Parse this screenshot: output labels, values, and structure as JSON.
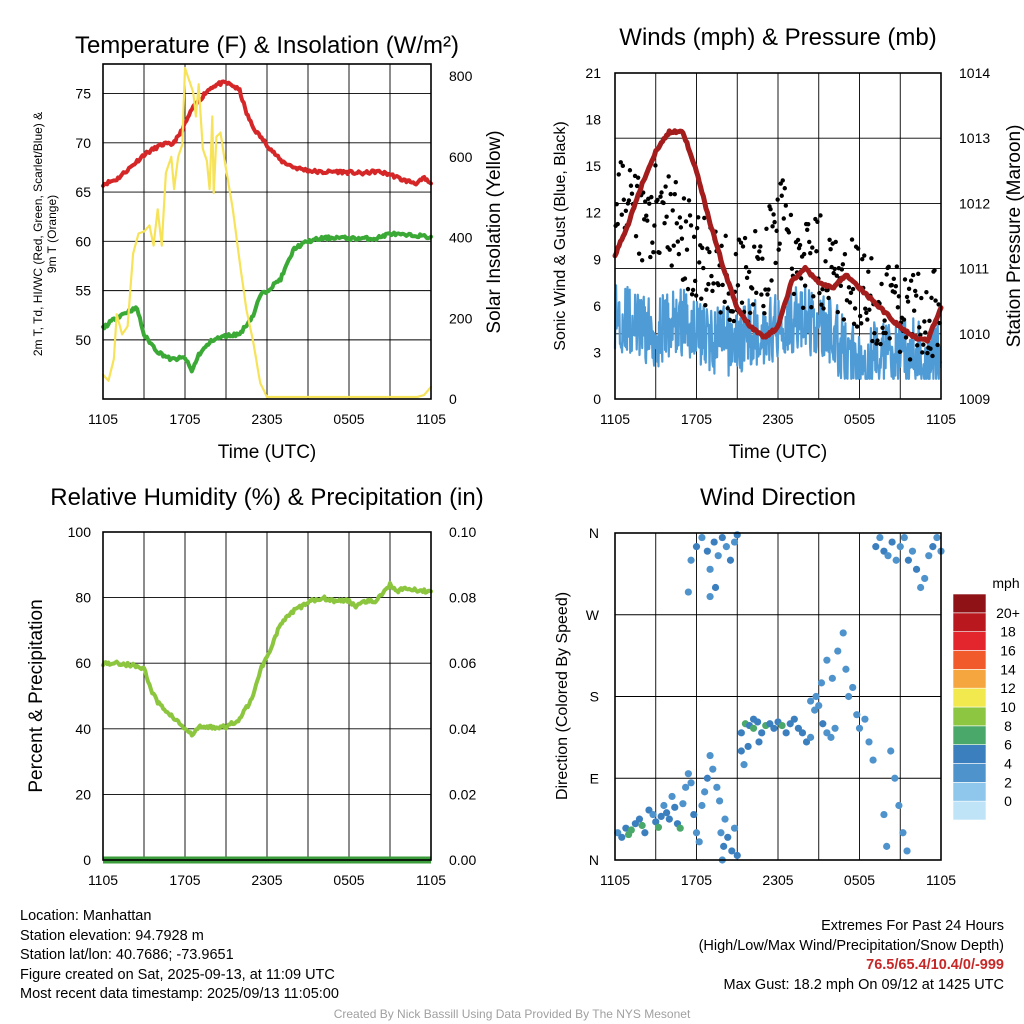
{
  "chart_data": [
    {
      "type": "line",
      "title": "Temperature (F) & Insolation (W/m²)",
      "xlabel": "Time (UTC)",
      "ylabel": "2m T, T_d, HI/WC (Red, Green, Scarlet/Blue) & 9m T (Orange)",
      "ylabel_right": "Solar Insolation (Yellow)",
      "x_ticks": [
        "1105",
        "1705",
        "2305",
        "0505",
        "1105"
      ],
      "ylim": [
        44,
        78
      ],
      "y_ticks": [
        50,
        55,
        60,
        65,
        70,
        75
      ],
      "ylim_right": [
        0,
        830
      ],
      "y_ticks_right": [
        0,
        200,
        400,
        600,
        800
      ],
      "series": [
        {
          "name": "2m T",
          "axis": "left",
          "color": "#d62728",
          "x": [
            0,
            1,
            2,
            3,
            4,
            4.5,
            5,
            5.5,
            6,
            6.5,
            7,
            7.5,
            8,
            8.5,
            9,
            9.5,
            10,
            10.5,
            11,
            12,
            13,
            14,
            15,
            16,
            17,
            18,
            19,
            20,
            21,
            22,
            23,
            23.5,
            24
          ],
          "y": [
            65.8,
            66.3,
            67.5,
            68.8,
            69.6,
            69.9,
            69.8,
            70.6,
            71.9,
            73.4,
            74.2,
            75.1,
            75.7,
            76.0,
            76.1,
            75.8,
            75.3,
            73.0,
            71.5,
            69.8,
            68.2,
            67.5,
            67.2,
            67.0,
            67.1,
            67.0,
            66.9,
            67.1,
            66.8,
            66.2,
            65.9,
            66.4,
            65.8
          ]
        },
        {
          "name": "T_d",
          "axis": "left",
          "color": "#3aa935",
          "x": [
            0,
            1,
            2,
            2.5,
            3,
            4,
            5,
            6,
            6.5,
            7,
            8,
            9,
            10,
            11,
            11.5,
            12,
            13,
            14,
            15,
            16,
            17,
            18,
            19,
            20,
            21,
            22,
            23,
            24
          ],
          "y": [
            51.2,
            52.3,
            53.0,
            53.2,
            50.5,
            48.8,
            48.0,
            48.2,
            46.8,
            48.5,
            50.0,
            50.4,
            50.6,
            52.5,
            54.5,
            55.0,
            56.2,
            59.3,
            60.0,
            60.3,
            60.4,
            60.3,
            60.3,
            60.3,
            60.8,
            60.6,
            60.6,
            60.4
          ]
        },
        {
          "name": "Solar Insolation",
          "axis": "right",
          "color": "#f7e35a",
          "x": [
            0,
            0.4,
            0.8,
            1.0,
            1.4,
            1.8,
            2.2,
            2.6,
            3.0,
            3.4,
            3.7,
            4.0,
            4.3,
            4.6,
            5.0,
            5.2,
            5.5,
            5.8,
            6.0,
            6.3,
            6.6,
            6.8,
            7.0,
            7.3,
            7.6,
            7.8,
            8.0,
            8.1,
            8.3,
            8.6,
            9.0,
            9.5,
            10.0,
            10.5,
            11.0,
            11.5,
            12,
            14,
            16,
            18,
            20,
            22,
            23,
            23.5,
            24
          ],
          "y": [
            60,
            45,
            100,
            210,
            160,
            180,
            360,
            410,
            415,
            430,
            380,
            470,
            380,
            560,
            600,
            520,
            600,
            630,
            820,
            790,
            760,
            700,
            780,
            620,
            590,
            520,
            700,
            510,
            650,
            660,
            570,
            470,
            340,
            220,
            140,
            40,
            5,
            5,
            5,
            5,
            5,
            5,
            5,
            10,
            30
          ]
        }
      ]
    },
    {
      "type": "scatter",
      "title": "Winds (mph) & Pressure (mb)",
      "xlabel": "Time (UTC)",
      "ylabel": "Sonic Wind & Gust (Blue, Black)",
      "ylabel_right": "Station Pressure (Maroon)",
      "x_ticks": [
        "1105",
        "1705",
        "2305",
        "0505",
        "1105"
      ],
      "ylim": [
        0,
        21
      ],
      "y_ticks": [
        0,
        3,
        6,
        9,
        12,
        15,
        18,
        21
      ],
      "ylim_right": [
        1009,
        1014
      ],
      "y_ticks_right": [
        1009,
        1010,
        1011,
        1012,
        1013,
        1014
      ],
      "series": [
        {
          "name": "Sonic Wind",
          "axis": "left",
          "color": "#4f9bd6",
          "x": [
            0,
            1,
            2,
            3,
            4,
            5,
            6,
            7,
            8,
            9,
            10,
            11,
            12,
            13,
            14,
            15,
            16,
            17,
            18,
            19,
            20,
            21,
            22,
            23,
            24
          ],
          "y": [
            5.5,
            5.0,
            4.5,
            4.2,
            4.8,
            5.0,
            4.6,
            3.8,
            3.8,
            3.6,
            4.4,
            4.2,
            4.8,
            5.2,
            5.0,
            4.6,
            4.4,
            2.8,
            2.6,
            3.0,
            2.8,
            2.8,
            3.0,
            2.6,
            3.2
          ]
        },
        {
          "name": "Gust",
          "axis": "left",
          "color": "#000000",
          "x": [
            0,
            1,
            2,
            3,
            4,
            5,
            6,
            7,
            8,
            9,
            10,
            11,
            12,
            13,
            14,
            15,
            16,
            17,
            18,
            19,
            20,
            21,
            22,
            23,
            24
          ],
          "y": [
            13.0,
            12.0,
            11.0,
            12.5,
            11.5,
            10.5,
            9.0,
            8.5,
            8.0,
            8.0,
            7.8,
            8.0,
            12.0,
            9.5,
            8.5,
            9.0,
            8.2,
            7.5,
            7.0,
            6.5,
            6.0,
            5.5,
            5.5,
            5.2,
            5.5
          ]
        },
        {
          "name": "Station Pressure",
          "axis": "right",
          "color": "#a31d1d",
          "x": [
            0,
            1,
            2,
            3,
            4,
            5,
            6,
            7,
            8,
            9,
            10,
            11,
            12,
            13,
            14,
            15,
            16,
            17,
            18,
            19,
            20,
            21,
            22,
            23,
            24
          ],
          "y": [
            1011.2,
            1011.7,
            1012.3,
            1012.8,
            1013.1,
            1013.1,
            1012.5,
            1011.7,
            1011.0,
            1010.4,
            1010.1,
            1009.95,
            1010.1,
            1010.8,
            1011.0,
            1010.8,
            1010.7,
            1010.9,
            1010.7,
            1010.5,
            1010.3,
            1010.1,
            1009.95,
            1009.9,
            1010.4
          ]
        }
      ]
    },
    {
      "type": "line",
      "title": "Relative Humidity (%) & Precipitation (in)",
      "xlabel": "",
      "ylabel": "Percent & Precipitation",
      "x_ticks": [
        "1105",
        "1705",
        "2305",
        "0505",
        "1105"
      ],
      "ylim": [
        0,
        100
      ],
      "y_ticks": [
        0,
        20,
        40,
        60,
        80,
        100
      ],
      "ylim_right": [
        0,
        0.1
      ],
      "y_ticks_right": [
        "0.00",
        "0.02",
        "0.04",
        "0.06",
        "0.08",
        "0.10"
      ],
      "series": [
        {
          "name": "Relative Humidity",
          "axis": "left",
          "color": "#8cc63f",
          "x": [
            0,
            1,
            2,
            3,
            3.5,
            4,
            5,
            6,
            6.5,
            7,
            8,
            9,
            10,
            11,
            11.5,
            12,
            13,
            14,
            15,
            16,
            17,
            18,
            18.5,
            19,
            20,
            21,
            21.5,
            22,
            23,
            24
          ],
          "y": [
            60,
            60,
            59.5,
            58.5,
            52,
            48,
            44,
            40,
            38,
            40.5,
            40.5,
            40.5,
            43,
            50,
            58,
            62,
            72,
            76,
            78.5,
            80,
            79,
            79,
            77.5,
            79,
            79,
            84,
            82,
            83,
            82,
            82
          ]
        },
        {
          "name": "Precipitation",
          "axis": "right",
          "color": "#3a9c3a",
          "x": [
            0,
            24
          ],
          "y": [
            0,
            0
          ]
        }
      ]
    },
    {
      "type": "scatter",
      "title": "Wind Direction",
      "xlabel": "",
      "ylabel": "Direction (Colored By Speed)",
      "x_ticks": [
        "1105",
        "1705",
        "2305",
        "0505",
        "1105"
      ],
      "y_ticks": [
        "N",
        "E",
        "S",
        "W",
        "N"
      ],
      "ylim": [
        0,
        360
      ],
      "colorbar_title": "mph",
      "colorbar_labels": [
        "0",
        "2",
        "4",
        "6",
        "8",
        "10",
        "12",
        "14",
        "16",
        "18",
        "20+"
      ],
      "colorbar_colors": [
        "#bfe3f7",
        "#8ec6ec",
        "#4f93cc",
        "#3c7fbf",
        "#4aa86a",
        "#8dc641",
        "#f2e94e",
        "#f6a63e",
        "#f15a2b",
        "#e3262d",
        "#b9191e",
        "#8f1216"
      ],
      "points": [
        [
          0.2,
          30,
          3
        ],
        [
          0.5,
          25,
          5
        ],
        [
          0.8,
          35,
          4
        ],
        [
          1.0,
          28,
          6
        ],
        [
          1.2,
          33,
          7
        ],
        [
          1.5,
          40,
          5
        ],
        [
          1.8,
          45,
          4
        ],
        [
          2.0,
          38,
          6
        ],
        [
          2.2,
          30,
          5
        ],
        [
          2.5,
          55,
          4
        ],
        [
          2.8,
          50,
          3
        ],
        [
          3.0,
          42,
          5
        ],
        [
          3.2,
          36,
          6
        ],
        [
          3.4,
          48,
          4
        ],
        [
          3.6,
          60,
          3
        ],
        [
          3.8,
          52,
          5
        ],
        [
          4.0,
          45,
          4
        ],
        [
          4.2,
          70,
          3
        ],
        [
          4.4,
          58,
          4
        ],
        [
          4.6,
          40,
          5
        ],
        [
          4.8,
          35,
          6
        ],
        [
          5.0,
          62,
          3
        ],
        [
          5.2,
          80,
          3
        ],
        [
          5.4,
          95,
          2
        ],
        [
          5.6,
          85,
          3
        ],
        [
          5.8,
          50,
          4
        ],
        [
          6.0,
          30,
          3
        ],
        [
          6.2,
          20,
          2
        ],
        [
          6.4,
          60,
          2
        ],
        [
          6.6,
          75,
          3
        ],
        [
          6.8,
          90,
          4
        ],
        [
          7.0,
          115,
          3
        ],
        [
          7.2,
          100,
          2
        ],
        [
          7.5,
          80,
          2
        ],
        [
          7.7,
          65,
          3
        ],
        [
          5.6,
          330,
          3
        ],
        [
          6.0,
          345,
          4
        ],
        [
          6.4,
          355,
          3
        ],
        [
          6.8,
          340,
          4
        ],
        [
          7.0,
          320,
          3
        ],
        [
          7.3,
          350,
          4
        ],
        [
          7.6,
          335,
          3
        ],
        [
          7.9,
          355,
          4
        ],
        [
          8.2,
          345,
          3
        ],
        [
          8.5,
          330,
          4
        ],
        [
          8.8,
          350,
          3
        ],
        [
          9.0,
          358,
          4
        ],
        [
          7.0,
          290,
          3
        ],
        [
          7.4,
          300,
          4
        ],
        [
          5.4,
          295,
          3
        ],
        [
          7.8,
          30,
          3
        ],
        [
          8.0,
          15,
          4
        ],
        [
          8.3,
          25,
          5
        ],
        [
          8.6,
          10,
          4
        ],
        [
          8.8,
          35,
          3
        ],
        [
          9.0,
          5,
          4
        ],
        [
          8.1,
          45,
          3
        ],
        [
          7.9,
          0,
          3
        ],
        [
          9.3,
          140,
          5
        ],
        [
          9.6,
          150,
          6
        ],
        [
          9.9,
          148,
          5
        ],
        [
          10.2,
          145,
          6
        ],
        [
          10.5,
          152,
          4
        ],
        [
          10.8,
          140,
          5
        ],
        [
          11.1,
          148,
          6
        ],
        [
          11.4,
          150,
          5
        ],
        [
          11.7,
          145,
          4
        ],
        [
          12.0,
          152,
          5
        ],
        [
          12.3,
          148,
          6
        ],
        [
          12.6,
          140,
          5
        ],
        [
          12.9,
          150,
          4
        ],
        [
          13.2,
          155,
          5
        ],
        [
          13.5,
          145,
          4
        ],
        [
          13.8,
          140,
          5
        ],
        [
          14.1,
          130,
          4
        ],
        [
          14.4,
          135,
          3
        ],
        [
          14.7,
          165,
          3
        ],
        [
          15.0,
          170,
          3
        ],
        [
          15.3,
          150,
          4
        ],
        [
          15.6,
          140,
          3
        ],
        [
          15.9,
          135,
          3
        ],
        [
          16.2,
          145,
          2
        ],
        [
          9.3,
          120,
          4
        ],
        [
          9.5,
          105,
          3
        ],
        [
          9.8,
          125,
          4
        ],
        [
          10.2,
          155,
          5
        ],
        [
          10.6,
          130,
          4
        ],
        [
          14.4,
          175,
          3
        ],
        [
          14.8,
          180,
          2
        ],
        [
          15.2,
          195,
          3
        ],
        [
          15.6,
          220,
          2
        ],
        [
          16.0,
          200,
          3
        ],
        [
          16.4,
          230,
          2
        ],
        [
          16.8,
          250,
          2
        ],
        [
          17.0,
          210,
          3
        ],
        [
          17.2,
          180,
          3
        ],
        [
          17.5,
          190,
          2
        ],
        [
          17.8,
          160,
          3
        ],
        [
          18.0,
          145,
          3
        ],
        [
          18.4,
          155,
          2
        ],
        [
          18.7,
          130,
          3
        ],
        [
          19.0,
          110,
          3
        ],
        [
          19.2,
          345,
          4
        ],
        [
          19.5,
          355,
          3
        ],
        [
          19.8,
          340,
          4
        ],
        [
          20.1,
          335,
          3
        ],
        [
          20.4,
          350,
          4
        ],
        [
          20.7,
          330,
          3
        ],
        [
          21.0,
          345,
          2
        ],
        [
          21.3,
          355,
          3
        ],
        [
          21.6,
          330,
          4
        ],
        [
          21.9,
          340,
          3
        ],
        [
          22.2,
          320,
          4
        ],
        [
          22.5,
          300,
          3
        ],
        [
          22.8,
          310,
          2
        ],
        [
          23.1,
          335,
          3
        ],
        [
          23.4,
          345,
          4
        ],
        [
          23.7,
          355,
          3
        ],
        [
          24.0,
          340,
          2
        ],
        [
          20.3,
          120,
          2
        ],
        [
          20.6,
          90,
          3
        ],
        [
          20.9,
          60,
          2
        ],
        [
          21.2,
          30,
          3
        ],
        [
          21.5,
          10,
          2
        ],
        [
          19.8,
          50,
          2
        ],
        [
          20.0,
          15,
          3
        ]
      ]
    }
  ],
  "info": {
    "location": "Location: Manhattan",
    "elevation": "Station elevation: 94.7928 m",
    "latlon": "Station lat/lon: 40.7686; -73.9651",
    "created": "Figure created on Sat, 2025-09-13, at 11:09 UTC",
    "recent": "Most recent data timestamp: 2025/09/13 11:05:00"
  },
  "extremes": {
    "heading": "Extremes For Past 24 Hours",
    "subheading": "(High/Low/Max Wind/Precipitation/Snow Depth)",
    "values": "76.5/65.4/10.4/0/-999",
    "max_gust": "Max Gust: 18.2 mph On 09/12 at 1425 UTC"
  },
  "credit": "Created By Nick Bassill Using Data Provided By The NYS Mesonet"
}
